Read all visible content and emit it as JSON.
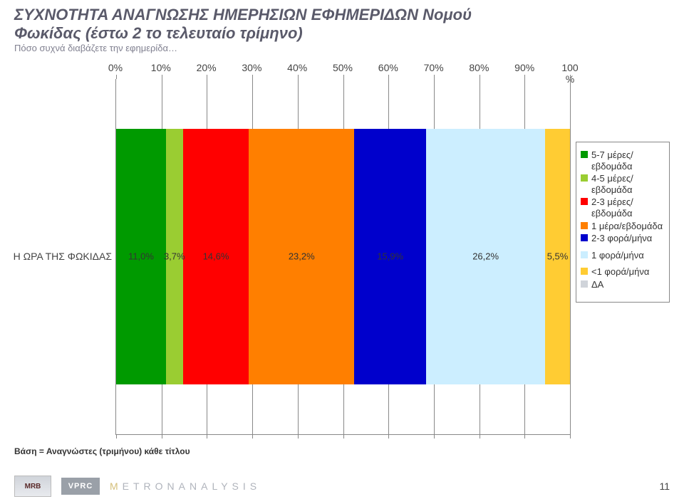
{
  "title_line1": "ΣΥΧΝΟΤΗΤΑ ΑΝΑΓΝΩΣΗΣ ΗΜΕΡΗΣΙΩΝ ΕΦΗΜΕΡΙΔΩΝ Νομού",
  "title_line2": "Φωκίδας (έστω 2 το τελευταίο τρίμηνο)",
  "subtitle": "Πόσο συχνά διαβάζετε την εφημερίδα…",
  "axis": {
    "ticks": [
      0,
      10,
      20,
      30,
      40,
      50,
      60,
      70,
      80,
      90,
      100
    ],
    "labels": [
      "0%",
      "10%",
      "20%",
      "30%",
      "40%",
      "50%",
      "60%",
      "70%",
      "80%",
      "90%",
      "100\n%"
    ]
  },
  "legend": [
    {
      "label": "5-7 μέρες/εβδομάδα",
      "color": "#009a00"
    },
    {
      "label": "4-5 μέρες/εβδομάδα",
      "color": "#9acd32"
    },
    {
      "label": "2-3 μέρες/εβδομάδα",
      "color": "#ff0000"
    },
    {
      "label": "1 μέρα/εβδομάδα",
      "color": "#ff7f00"
    },
    {
      "label": "2-3 φορά/μήνα",
      "color": "#0000cc"
    },
    {
      "label": "1 φορά/μήνα",
      "color": "#cceeff"
    },
    {
      "label": "<1 φορά/μήνα",
      "color": "#ffcc33"
    },
    {
      "label": "ΔΑ",
      "color": "#d0d4da"
    }
  ],
  "chart": {
    "type": "stacked-bar-horizontal",
    "xlim": [
      0,
      100
    ],
    "bar_top_pct": 14,
    "bar_height_pct": 72,
    "row": {
      "label": "Η ΩΡΑ ΤΗΣ ΦΩΚΙΔΑΣ",
      "segments": [
        {
          "value": 11.0,
          "text": "11,0%",
          "color": "#009a00"
        },
        {
          "value": 3.7,
          "text": "3,7%",
          "color": "#9acd32"
        },
        {
          "value": 14.6,
          "text": "14,6%",
          "color": "#ff0000"
        },
        {
          "value": 23.2,
          "text": "23,2%",
          "color": "#ff7f00"
        },
        {
          "value": 15.9,
          "text": "15,9%",
          "color": "#0000cc"
        },
        {
          "value": 26.2,
          "text": "26,2%",
          "color": "#cceeff"
        },
        {
          "value": 5.5,
          "text": "5,5%",
          "color": "#ffcc33"
        }
      ],
      "label_top_pct": 50
    }
  },
  "footer_note": "Βάση = Αναγνώστες (τριμήνου) κάθε τίτλου",
  "logos": {
    "mrb": "MRB",
    "vprc": "VPRC",
    "metron": "METRONANALYSIS"
  },
  "page_number": "11",
  "colors": {
    "title": "#5a5a6a",
    "grid": "#888888",
    "background": "#ffffff"
  }
}
